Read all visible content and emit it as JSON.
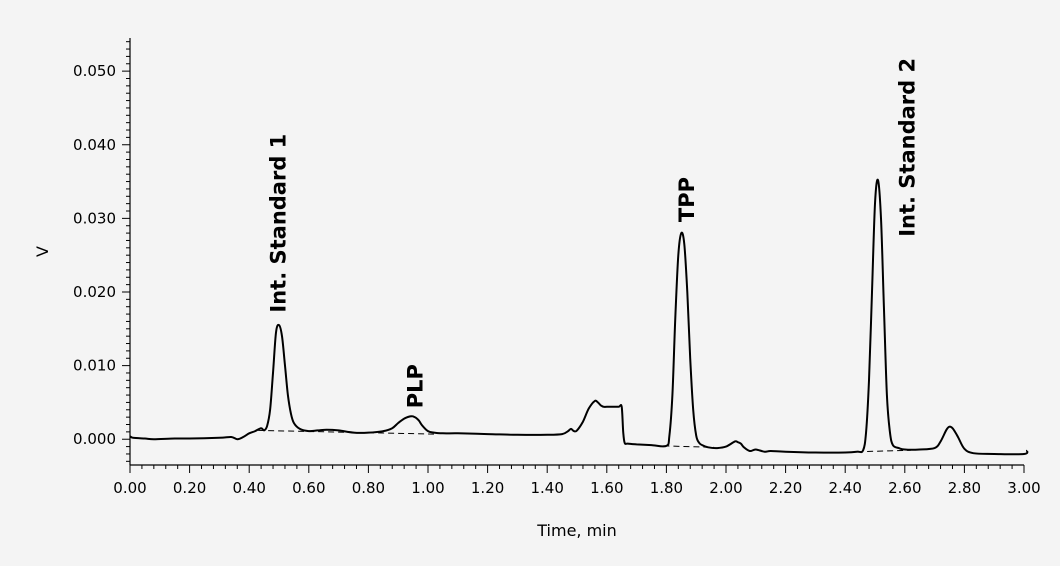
{
  "chart_data": {
    "type": "line",
    "title": "",
    "xlabel": "Time, min",
    "ylabel": "V",
    "xlim": [
      0,
      3.0
    ],
    "ylim": [
      -0.0035,
      0.0545
    ],
    "grid": false,
    "x_ticks": [
      "0.00",
      "0.20",
      "0.40",
      "0.60",
      "0.80",
      "1.00",
      "1.20",
      "1.40",
      "1.60",
      "1.80",
      "2.00",
      "2.20",
      "2.40",
      "2.60",
      "2.80",
      "3.00"
    ],
    "y_ticks": [
      "0.000",
      "0.010",
      "0.020",
      "0.030",
      "0.040",
      "0.050"
    ],
    "series": [
      {
        "x": [
          0.0,
          0.01,
          0.05,
          0.08,
          0.15,
          0.2,
          0.3,
          0.34,
          0.36,
          0.38,
          0.4,
          0.42,
          0.44,
          0.45,
          0.46,
          0.47,
          0.48,
          0.49,
          0.5,
          0.51,
          0.52,
          0.53,
          0.54,
          0.55,
          0.57,
          0.6,
          0.63,
          0.66,
          0.7,
          0.75,
          0.8,
          0.85,
          0.88,
          0.9,
          0.92,
          0.94,
          0.95,
          0.96,
          0.97,
          0.98,
          1.0,
          1.02,
          1.05,
          1.1,
          1.2,
          1.3,
          1.4,
          1.45,
          1.47,
          1.48,
          1.49,
          1.5,
          1.52,
          1.54,
          1.56,
          1.57,
          1.58,
          1.59,
          1.6,
          1.62,
          1.64,
          1.65,
          1.655,
          1.66,
          1.67,
          1.7,
          1.75,
          1.8,
          1.81,
          1.82,
          1.83,
          1.84,
          1.85,
          1.86,
          1.87,
          1.88,
          1.89,
          1.9,
          1.91,
          1.92,
          1.94,
          1.97,
          2.0,
          2.03,
          2.04,
          2.05,
          2.06,
          2.08,
          2.1,
          2.13,
          2.15,
          2.2,
          2.3,
          2.4,
          2.44,
          2.46,
          2.47,
          2.48,
          2.49,
          2.5,
          2.51,
          2.52,
          2.53,
          2.54,
          2.55,
          2.56,
          2.58,
          2.6,
          2.65,
          2.7,
          2.72,
          2.74,
          2.75,
          2.76,
          2.77,
          2.78,
          2.8,
          2.83,
          2.9,
          3.0,
          3.01
        ],
        "y": [
          0.0004,
          0.0002,
          0.0001,
          0.0,
          0.0001,
          0.0001,
          0.0002,
          0.0003,
          0.0,
          0.0003,
          0.0008,
          0.0011,
          0.0015,
          0.0012,
          0.0018,
          0.004,
          0.009,
          0.0145,
          0.0155,
          0.014,
          0.01,
          0.006,
          0.0035,
          0.0022,
          0.0014,
          0.0011,
          0.0012,
          0.0013,
          0.0012,
          0.0009,
          0.0009,
          0.0011,
          0.0015,
          0.0022,
          0.0028,
          0.0031,
          0.0031,
          0.0029,
          0.0025,
          0.0019,
          0.0011,
          0.0009,
          0.0008,
          0.0008,
          0.0007,
          0.0006,
          0.0006,
          0.0007,
          0.0011,
          0.0014,
          0.0011,
          0.0012,
          0.0024,
          0.0042,
          0.0052,
          0.005,
          0.0046,
          0.0044,
          0.0044,
          0.0044,
          0.0044,
          0.0044,
          0.001,
          -0.0005,
          -0.0006,
          -0.0007,
          -0.0008,
          -0.0009,
          0.0005,
          0.006,
          0.0165,
          0.025,
          0.028,
          0.0265,
          0.02,
          0.011,
          0.004,
          0.0005,
          -0.0005,
          -0.0008,
          -0.0011,
          -0.0012,
          -0.001,
          -0.0003,
          -0.0004,
          -0.0006,
          -0.0011,
          -0.0016,
          -0.0014,
          -0.0017,
          -0.0016,
          -0.0017,
          -0.0018,
          -0.0018,
          -0.0017,
          -0.0015,
          0.001,
          0.008,
          0.02,
          0.032,
          0.0352,
          0.03,
          0.018,
          0.006,
          0.001,
          -0.0008,
          -0.0012,
          -0.0014,
          -0.0014,
          -0.0012,
          -0.0003,
          0.0013,
          0.0017,
          0.0015,
          0.0009,
          0.0002,
          -0.0013,
          -0.0019,
          -0.002,
          -0.002,
          -0.0015
        ]
      }
    ],
    "baselines": [
      {
        "x": [
          0.43,
          1.02
        ],
        "y": [
          0.0012,
          0.0007
        ]
      },
      {
        "x": [
          1.79,
          1.96
        ],
        "y": [
          -0.0009,
          -0.0011
        ]
      },
      {
        "x": [
          2.44,
          2.62
        ],
        "y": [
          -0.0017,
          -0.0015
        ]
      }
    ],
    "annotations": [
      {
        "text": "Int. Standard 1",
        "x": 0.495,
        "y": 0.0172,
        "rotated": true
      },
      {
        "text": "PLP",
        "x": 0.955,
        "y": 0.0042,
        "rotated": true
      },
      {
        "text": "TPP",
        "x": 1.865,
        "y": 0.0295,
        "rotated": true
      },
      {
        "text": "Int. Standard 2",
        "x": 2.605,
        "y": 0.0275,
        "rotated": true
      }
    ]
  }
}
